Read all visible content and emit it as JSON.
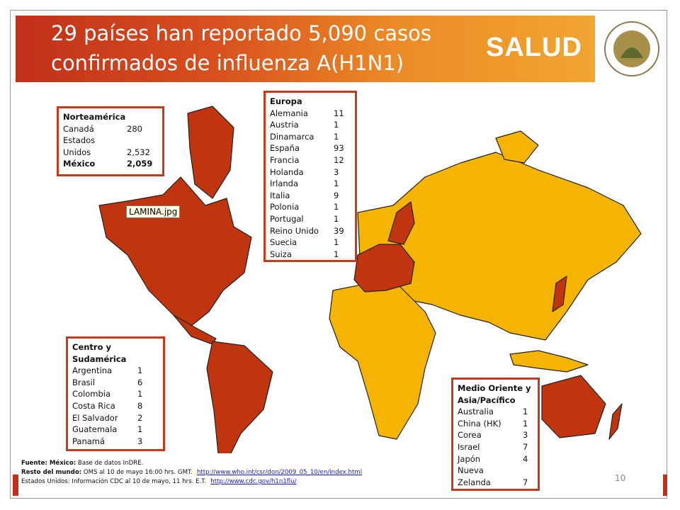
{
  "header": {
    "title_lines": [
      "29 países han reportado 5,090 casos",
      "confirmados de influenza A(H1N1)"
    ],
    "logo_text": "SALUD"
  },
  "tooltip": "LAMINA.jpg",
  "boxes": [
    {
      "title": "Norteamérica",
      "rows": [
        {
          "name": "Canadá",
          "value": "280"
        },
        {
          "name": "Estados Unidos",
          "value": "2,532"
        },
        {
          "name": "México",
          "value": "2,059",
          "bold": true
        }
      ]
    },
    {
      "title": "Europa",
      "rows": [
        {
          "name": "Alemania",
          "value": "11"
        },
        {
          "name": "Austria",
          "value": "1"
        },
        {
          "name": "Dinamarca",
          "value": "1"
        },
        {
          "name": "España",
          "value": "93"
        },
        {
          "name": "Francia",
          "value": "12"
        },
        {
          "name": "Holanda",
          "value": "3"
        },
        {
          "name": "Irlanda",
          "value": "1"
        },
        {
          "name": "Italia",
          "value": "9"
        },
        {
          "name": "Polonia",
          "value": "1"
        },
        {
          "name": "Portugal",
          "value": "1"
        },
        {
          "name": "Reino Unido",
          "value": "39"
        },
        {
          "name": "Suecia",
          "value": "1"
        },
        {
          "name": "Suiza",
          "value": "1"
        }
      ]
    },
    {
      "title": "Centro y Sudamérica",
      "rows": [
        {
          "name": "Argentina",
          "value": "1"
        },
        {
          "name": "Brasil",
          "value": "6"
        },
        {
          "name": "Colombia",
          "value": "1"
        },
        {
          "name": "Costa Rica",
          "value": "8"
        },
        {
          "name": "El Salvador",
          "value": "2"
        },
        {
          "name": "Guatemala",
          "value": "1"
        },
        {
          "name": "Panamá",
          "value": "3"
        }
      ]
    },
    {
      "title": "Medio Oriente y Asia/Pacífico",
      "rows": [
        {
          "name": "Australia",
          "value": "1"
        },
        {
          "name": "China (HK)",
          "value": "1"
        },
        {
          "name": "Corea",
          "value": "3"
        },
        {
          "name": "Israel",
          "value": "7"
        },
        {
          "name": "Japón",
          "value": "4"
        },
        {
          "name": "Nueva Zelanda",
          "value": "7"
        }
      ]
    }
  ],
  "footer": [
    {
      "bold": "Fuente: México:",
      "text": "Base de datos InDRE."
    },
    {
      "bold": "Resto del mundo:",
      "text": "OMS  al 10 de mayo 16:00 hrs. GMT.",
      "link": "http://www.who.int/csr/don/2009_05_10/en/index.html"
    },
    {
      "text": "Estados Unidos: Información CDC al 10 de mayo, 11 hrs. E.T.",
      "link": "http://www.cdc.gov/h1n1flu/"
    }
  ],
  "page_number": "10"
}
